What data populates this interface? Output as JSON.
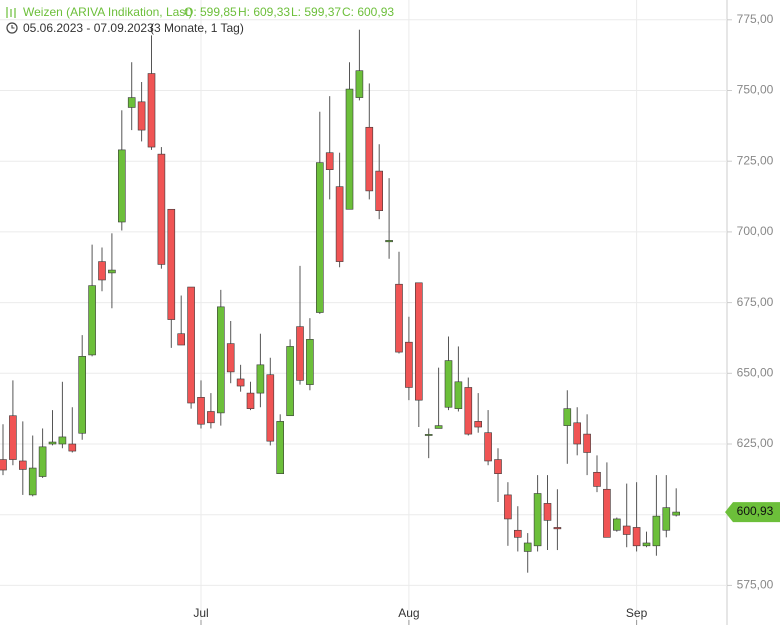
{
  "chart_data": {
    "type": "candlestick",
    "title": "Weizen (ARIVA Indikation, Last)",
    "quote": [
      "O: 599,85",
      "H: 609,33",
      "L: 599,37",
      "C: 600,93"
    ],
    "subtitle": "05.06.2023 - 07.09.2023",
    "period": "(3 Monate, 1 Tag)",
    "last_label": "600,93",
    "up_color": "#6cbf3a",
    "down_color": "#f05454",
    "categories": [
      null,
      null,
      null,
      null,
      null,
      null,
      null,
      null,
      null,
      null,
      null,
      null,
      null,
      null,
      null,
      null,
      null,
      null,
      null,
      null,
      "Jul",
      null,
      null,
      null,
      null,
      null,
      null,
      null,
      null,
      null,
      null,
      null,
      null,
      null,
      null,
      null,
      null,
      null,
      null,
      null,
      null,
      "Aug",
      null,
      null,
      null,
      null,
      null,
      null,
      null,
      null,
      null,
      null,
      null,
      null,
      null,
      null,
      null,
      null,
      null,
      null,
      null,
      null,
      null,
      null,
      "Sep",
      null,
      null,
      null,
      null
    ],
    "open": [
      619.5,
      635,
      619,
      607,
      613.5,
      625,
      625,
      625,
      628.8,
      656.5,
      689.5,
      685.5,
      703.5,
      744,
      746,
      756,
      727.5,
      708,
      664,
      680.5,
      641.5,
      636.5,
      636,
      660.5,
      648,
      643,
      643,
      649.5,
      614.5,
      635,
      666.5,
      646,
      671.5,
      728,
      716,
      708,
      747.5,
      737,
      721.5,
      696.5,
      681.5,
      661,
      682,
      628,
      630.5,
      638,
      637.5,
      645,
      633,
      629,
      619.5,
      607,
      594.5,
      587,
      589,
      604,
      595.5,
      631.5,
      632.5,
      628.5,
      615,
      609,
      594.5,
      596,
      595.5,
      589,
      589,
      594.5,
      599.85
    ],
    "high": [
      632,
      647.5,
      633,
      628,
      630.5,
      637,
      647,
      638,
      663.5,
      695.5,
      694.5,
      699.5,
      743,
      760,
      753,
      769.5,
      730,
      708,
      677.5,
      680.5,
      647.5,
      643,
      679.5,
      668.5,
      653,
      647,
      664,
      655.5,
      635.5,
      662,
      688,
      669.5,
      742.5,
      748,
      728,
      760,
      771.5,
      752.5,
      731,
      719,
      693,
      670,
      682,
      630.5,
      652,
      663,
      659.5,
      648.5,
      643,
      637,
      623.5,
      611.5,
      603,
      593.5,
      614,
      614,
      609,
      644,
      638,
      635.5,
      621,
      618.5,
      599,
      611,
      611.5,
      594,
      614,
      614,
      609.33
    ],
    "low": [
      614,
      617.5,
      607,
      606.5,
      613,
      624.5,
      623.5,
      622,
      626.5,
      656,
      679,
      673,
      700.5,
      736,
      732,
      729,
      687,
      659,
      660,
      637.5,
      630.5,
      630.5,
      631.5,
      646.5,
      643.5,
      637,
      638,
      624.5,
      614.5,
      635,
      646,
      644,
      671,
      711.5,
      687.5,
      708,
      746.5,
      711.5,
      704.5,
      690.5,
      657,
      640.5,
      631,
      620,
      630.5,
      637,
      636.5,
      628,
      629,
      617.5,
      604.5,
      589,
      587,
      579.5,
      587,
      587.5,
      587.5,
      618,
      621,
      614,
      608,
      592,
      594,
      588.5,
      587,
      588.5,
      585.5,
      592,
      599.37
    ],
    "close": [
      615.8,
      619.5,
      616,
      616.5,
      624,
      625.7,
      627.5,
      622.5,
      656,
      681,
      683,
      686.5,
      729,
      747.5,
      736,
      730,
      688.5,
      669,
      660,
      639.5,
      632,
      632.5,
      673.5,
      650.5,
      645.5,
      637.5,
      653,
      626,
      633,
      659.5,
      647.5,
      662,
      724.5,
      722,
      689.5,
      750.5,
      757,
      714.5,
      707.5,
      697,
      657.5,
      645,
      640.5,
      628.4,
      631.5,
      654.5,
      647,
      628.5,
      631,
      619,
      614.5,
      598.5,
      592,
      590,
      607.5,
      598,
      595,
      637.5,
      625,
      622,
      610,
      592,
      598.5,
      593,
      589,
      590,
      599.5,
      602.5,
      600.93
    ],
    "ylim": [
      561,
      782
    ],
    "yticks": [
      {
        "value": 575,
        "label": "575,00"
      },
      {
        "value": 600,
        "label": "600,00"
      },
      {
        "value": 625,
        "label": "625,00"
      },
      {
        "value": 650,
        "label": "650,00"
      },
      {
        "value": 675,
        "label": "675,00"
      },
      {
        "value": 700,
        "label": "700,00"
      },
      {
        "value": 725,
        "label": "725,00"
      },
      {
        "value": 750,
        "label": "750,00"
      },
      {
        "value": 775,
        "label": "775,00"
      }
    ],
    "grid": true
  }
}
